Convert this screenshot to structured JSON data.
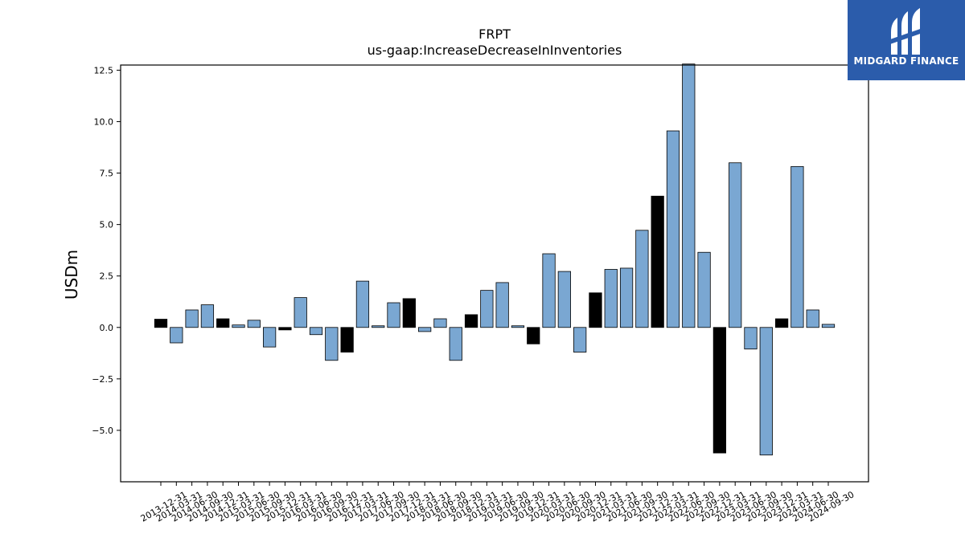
{
  "chart_data": {
    "type": "bar",
    "title": "FRPT",
    "subtitle": "us-gaap:IncreaseDecreaseInInventories",
    "xlabel": "",
    "ylabel": "USDm",
    "ylim": [
      -7.5,
      12.75
    ],
    "yticks": [
      -5.0,
      -2.5,
      0.0,
      2.5,
      5.0,
      7.5,
      10.0,
      12.5
    ],
    "ytick_labels": [
      "−5.0",
      "−2.5",
      "0.0",
      "2.5",
      "5.0",
      "7.5",
      "10.0",
      "12.5"
    ],
    "grid": false,
    "colors": {
      "regular": "#7aa7d2",
      "highlight": "#000000",
      "edge": "#000000"
    },
    "categories": [
      "2013-12-31",
      "2014-03-31",
      "2014-06-30",
      "2014-09-30",
      "2014-12-31",
      "2015-03-31",
      "2015-06-30",
      "2015-09-30",
      "2015-12-31",
      "2016-03-31",
      "2016-06-30",
      "2016-09-30",
      "2016-12-31",
      "2017-03-31",
      "2017-06-30",
      "2017-09-30",
      "2017-12-31",
      "2018-03-31",
      "2018-06-30",
      "2018-09-30",
      "2018-12-31",
      "2019-03-31",
      "2019-06-30",
      "2019-09-30",
      "2019-12-31",
      "2020-03-31",
      "2020-06-30",
      "2020-09-30",
      "2020-12-31",
      "2021-03-31",
      "2021-06-30",
      "2021-09-30",
      "2021-12-31",
      "2022-03-31",
      "2022-06-30",
      "2022-09-30",
      "2022-12-31",
      "2023-03-31",
      "2023-06-30",
      "2023-09-30",
      "2023-12-31",
      "2024-03-31",
      "2024-06-30",
      "2024-09-30"
    ],
    "values": [
      0.4,
      -0.75,
      0.85,
      1.1,
      0.42,
      0.12,
      0.35,
      -0.95,
      -0.12,
      1.45,
      -0.35,
      -1.6,
      -1.2,
      2.25,
      0.08,
      1.2,
      1.4,
      -0.2,
      0.42,
      -1.6,
      0.62,
      1.8,
      2.18,
      0.08,
      -0.8,
      3.58,
      2.72,
      -1.2,
      1.68,
      2.82,
      2.88,
      4.72,
      6.38,
      9.55,
      12.8,
      3.65,
      -6.1,
      8.0,
      -1.05,
      -6.2,
      0.42,
      7.82,
      0.85,
      0.15
    ],
    "highlight": [
      true,
      false,
      false,
      false,
      true,
      false,
      false,
      false,
      true,
      false,
      false,
      false,
      true,
      false,
      false,
      false,
      true,
      false,
      false,
      false,
      true,
      false,
      false,
      false,
      true,
      false,
      false,
      false,
      true,
      false,
      false,
      false,
      true,
      false,
      false,
      false,
      true,
      false,
      false,
      false,
      true,
      false,
      false,
      false
    ]
  },
  "logo": {
    "text": "MIDGARD FINANCE",
    "icon": "midgard-logo-icon"
  }
}
